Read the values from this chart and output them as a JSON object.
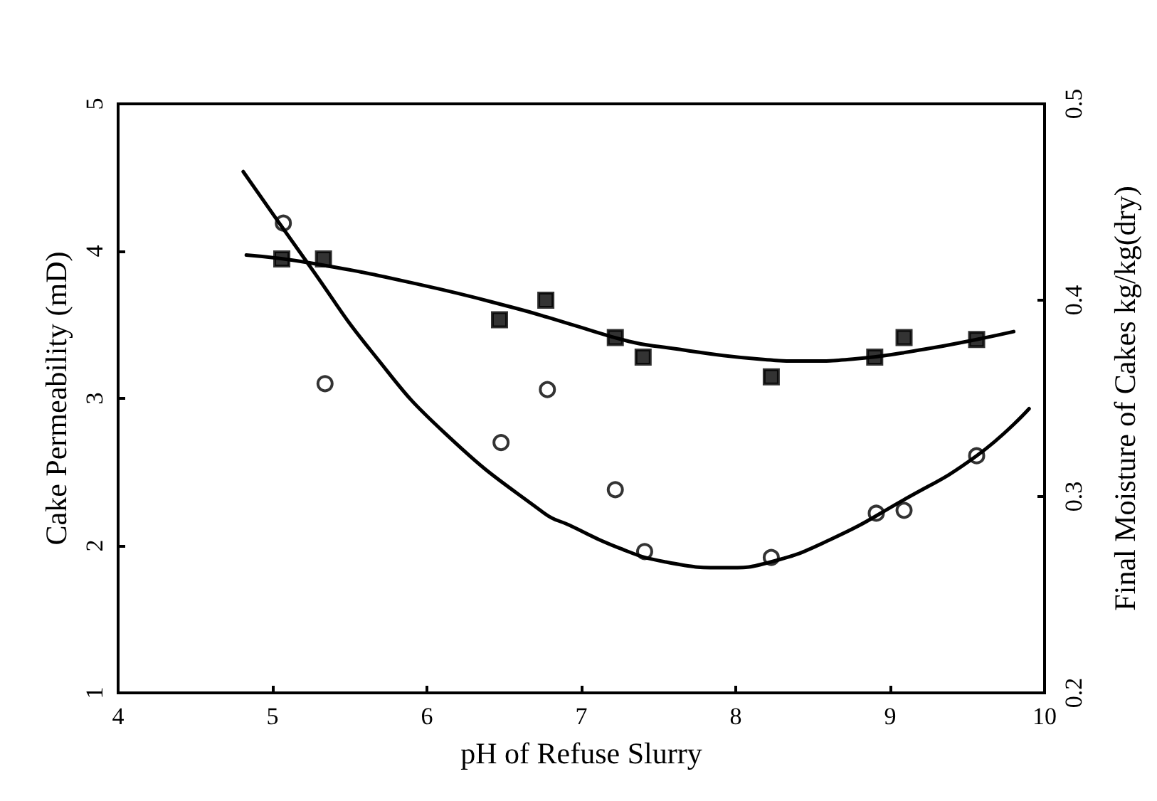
{
  "chart_data": {
    "type": "scatter",
    "xlabel": "pH of Refuse Slurry",
    "ylabel": "Cake Permeability (mD)",
    "y2label": "Final Moisture of Cakes kg/kg(dry)",
    "xlim": [
      4,
      10
    ],
    "xticks": [
      4,
      5,
      6,
      7,
      8,
      9,
      10
    ],
    "ylim": [
      1,
      5
    ],
    "yticks": [
      1,
      2,
      3,
      4,
      5
    ],
    "y2lim": [
      0.2,
      0.5
    ],
    "y2ticks": [
      0.2,
      0.3,
      0.4,
      0.5
    ],
    "grid": false,
    "series": [
      {
        "color": "#000000",
        "marker": "circle",
        "x": [
          5.07,
          5.34,
          6.48,
          6.78,
          7.22,
          7.41,
          8.23,
          8.91,
          9.09,
          9.56
        ],
        "values": [
          4.19,
          3.1,
          2.7,
          3.06,
          2.38,
          1.96,
          1.92,
          2.22,
          2.24,
          2.61
        ]
      },
      {
        "axis": "y2",
        "color": "#000000",
        "marker": "square",
        "x": [
          5.06,
          5.33,
          6.47,
          6.77,
          7.22,
          7.4,
          8.23,
          8.9,
          9.09,
          9.56
        ],
        "values": [
          0.421,
          0.421,
          0.39,
          0.4,
          0.381,
          0.371,
          0.361,
          0.371,
          0.381,
          0.38
        ]
      },
      {
        "type": "line",
        "color": "#000000",
        "marker": "none",
        "line_style": "solid",
        "x": [
          4.81,
          5.24,
          5.64,
          6.11,
          6.76,
          6.92,
          7.23,
          7.54,
          7.94,
          8.23,
          8.61,
          9.07,
          9.56,
          9.9
        ],
        "values": [
          4.54,
          3.9,
          3.32,
          2.77,
          2.22,
          2.14,
          1.99,
          1.89,
          1.85,
          1.89,
          2.04,
          2.3,
          2.61,
          2.93
        ]
      },
      {
        "type": "line",
        "axis": "y2",
        "color": "#000000",
        "marker": "none",
        "line_style": "solid",
        "x": [
          4.83,
          5.24,
          5.95,
          6.57,
          6.92,
          7.31,
          7.54,
          8.15,
          8.46,
          8.76,
          9.22,
          9.56,
          9.8
        ],
        "values": [
          0.423,
          0.419,
          0.408,
          0.396,
          0.388,
          0.379,
          0.376,
          0.37,
          0.369,
          0.37,
          0.375,
          0.38,
          0.384
        ]
      }
    ]
  }
}
